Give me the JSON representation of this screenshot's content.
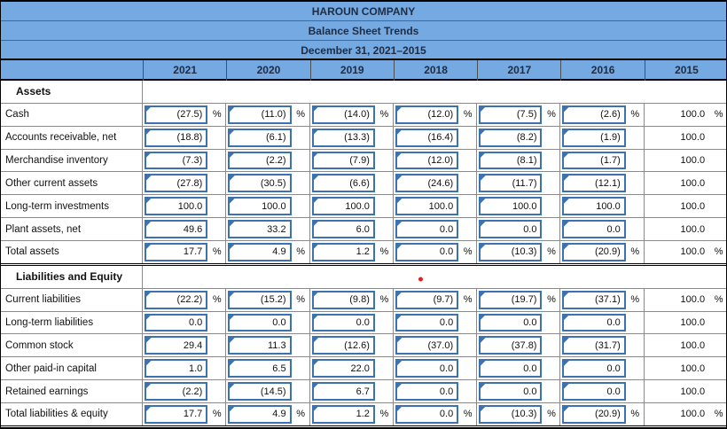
{
  "header": {
    "company": "HAROUN COMPANY",
    "report": "Balance Sheet Trends",
    "period": "December 31, 2021–2015",
    "years": [
      "2021",
      "2020",
      "2019",
      "2018",
      "2017",
      "2016",
      "2015"
    ]
  },
  "percent_symbol": "%",
  "colors": {
    "header_bg": "#74a9e2",
    "header_text": "#1f2c42",
    "input_border": "#3d72b0",
    "grid_line": "#8a8a8a",
    "marker_dot": "#e02222"
  },
  "table": {
    "editable_year_count": 6,
    "sections": [
      {
        "title": "Assets",
        "marker": false,
        "rows": [
          {
            "label": "Cash",
            "values": [
              "(27.5)",
              "(11.0)",
              "(14.0)",
              "(12.0)",
              "(7.5)",
              "(2.6)",
              "100.0"
            ],
            "pct": true,
            "total": false
          },
          {
            "label": "Accounts receivable, net",
            "values": [
              "(18.8)",
              "(6.1)",
              "(13.3)",
              "(16.4)",
              "(8.2)",
              "(1.9)",
              "100.0"
            ],
            "pct": false,
            "total": false
          },
          {
            "label": "Merchandise inventory",
            "values": [
              "(7.3)",
              "(2.2)",
              "(7.9)",
              "(12.0)",
              "(8.1)",
              "(1.7)",
              "100.0"
            ],
            "pct": false,
            "total": false
          },
          {
            "label": "Other current assets",
            "values": [
              "(27.8)",
              "(30.5)",
              "(6.6)",
              "(24.6)",
              "(11.7)",
              "(12.1)",
              "100.0"
            ],
            "pct": false,
            "total": false
          },
          {
            "label": "Long-term investments",
            "values": [
              "100.0",
              "100.0",
              "100.0",
              "100.0",
              "100.0",
              "100.0",
              "100.0"
            ],
            "pct": false,
            "total": false
          },
          {
            "label": "Plant assets, net",
            "values": [
              "49.6",
              "33.2",
              "6.0",
              "0.0",
              "0.0",
              "0.0",
              "100.0"
            ],
            "pct": false,
            "total": false
          },
          {
            "label": "Total assets",
            "values": [
              "17.7",
              "4.9",
              "1.2",
              "0.0",
              "(10.3)",
              "(20.9)",
              "100.0"
            ],
            "pct": true,
            "total": true
          }
        ]
      },
      {
        "title": "Liabilities and Equity",
        "marker": true,
        "rows": [
          {
            "label": "Current liabilities",
            "values": [
              "(22.2)",
              "(15.2)",
              "(9.8)",
              "(9.7)",
              "(19.7)",
              "(37.1)",
              "100.0"
            ],
            "pct": true,
            "total": false
          },
          {
            "label": "Long-term liabilities",
            "values": [
              "0.0",
              "0.0",
              "0.0",
              "0.0",
              "0.0",
              "0.0",
              "100.0"
            ],
            "pct": false,
            "total": false
          },
          {
            "label": "Common stock",
            "values": [
              "29.4",
              "11.3",
              "(12.6)",
              "(37.0)",
              "(37.8)",
              "(31.7)",
              "100.0"
            ],
            "pct": false,
            "total": false
          },
          {
            "label": "Other paid-in capital",
            "values": [
              "1.0",
              "6.5",
              "22.0",
              "0.0",
              "0.0",
              "0.0",
              "100.0"
            ],
            "pct": false,
            "total": false
          },
          {
            "label": "Retained earnings",
            "values": [
              "(2.2)",
              "(14.5)",
              "6.7",
              "0.0",
              "0.0",
              "0.0",
              "100.0"
            ],
            "pct": false,
            "total": false
          },
          {
            "label": "Total liabilities & equity",
            "values": [
              "17.7",
              "4.9",
              "1.2",
              "0.0",
              "(10.3)",
              "(20.9)",
              "100.0"
            ],
            "pct": true,
            "total": true
          }
        ]
      }
    ]
  }
}
